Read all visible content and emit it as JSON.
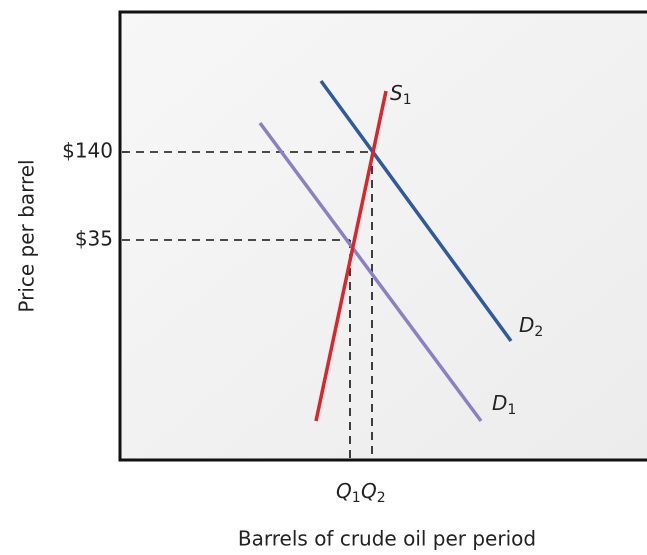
{
  "axes": {
    "y_label": "Price per barrel",
    "x_label": "Barrels of crude oil per period"
  },
  "price_labels": [
    "$140",
    "$35"
  ],
  "quantity_labels": [
    {
      "letter": "Q",
      "sub": "1"
    },
    {
      "letter": "Q",
      "sub": "2"
    }
  ],
  "curves": [
    {
      "letter": "S",
      "sub": "1"
    },
    {
      "letter": "D",
      "sub": "1"
    },
    {
      "letter": "D",
      "sub": "2"
    }
  ]
}
